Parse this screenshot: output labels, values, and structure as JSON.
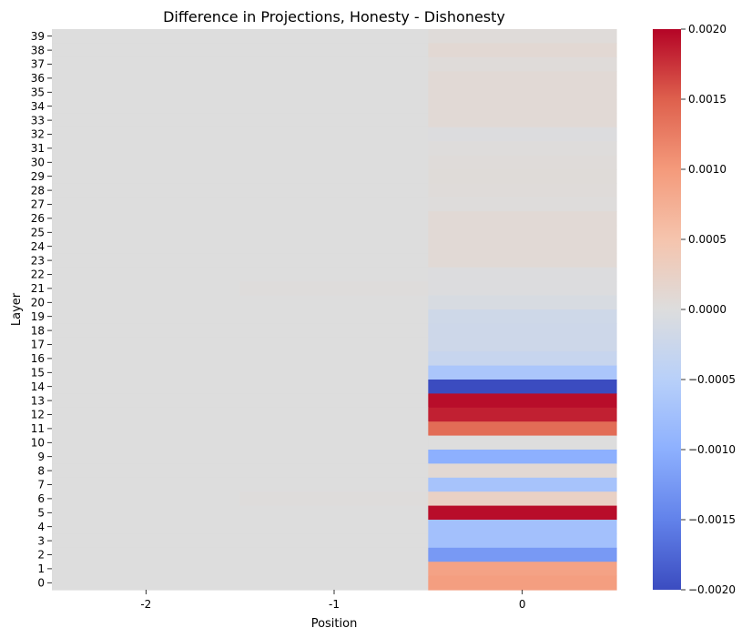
{
  "chart_data": {
    "type": "heatmap",
    "title": "Difference in Projections, Honesty - Dishonesty",
    "xlabel": "Position",
    "ylabel": "Layer",
    "x_categories": [
      "-2",
      "-1",
      "0"
    ],
    "y_categories": [
      "39",
      "38",
      "37",
      "36",
      "35",
      "34",
      "33",
      "32",
      "31",
      "30",
      "29",
      "28",
      "27",
      "26",
      "25",
      "24",
      "23",
      "22",
      "21",
      "20",
      "19",
      "18",
      "17",
      "16",
      "15",
      "14",
      "13",
      "12",
      "11",
      "10",
      "9",
      "8",
      "7",
      "6",
      "5",
      "4",
      "3",
      "2",
      "1",
      "0"
    ],
    "colormap": "coolwarm",
    "vmin": -0.002,
    "vmax": 0.002,
    "colorbar_ticks": [
      "0.0020",
      "0.0015",
      "0.0010",
      "0.0005",
      "0.0000",
      "−0.0005",
      "−0.0010",
      "−0.0015",
      "−0.0020"
    ],
    "colorbar_tick_values": [
      0.002,
      0.0015,
      0.001,
      0.0005,
      0,
      -0.0005,
      -0.001,
      -0.0015,
      -0.002
    ],
    "values": [
      [
        0.0,
        0.0,
        4e-05
      ],
      [
        0.0,
        0.0,
        0.0001
      ],
      [
        0.0,
        0.0,
        4e-05
      ],
      [
        0.0,
        0.0,
        8e-05
      ],
      [
        0.0,
        0.0,
        8e-05
      ],
      [
        0.0,
        0.0,
        8e-05
      ],
      [
        0.0,
        0.0,
        8e-05
      ],
      [
        0.0,
        0.0,
        -2e-05
      ],
      [
        0.0,
        0.0,
        2e-05
      ],
      [
        0.0,
        0.0,
        4e-05
      ],
      [
        0.0,
        0.0,
        5e-05
      ],
      [
        0.0,
        0.0,
        4e-05
      ],
      [
        0.0,
        0.0,
        2e-05
      ],
      [
        0.0,
        0.0,
        8e-05
      ],
      [
        0.0,
        0.0,
        8e-05
      ],
      [
        0.0,
        0.0,
        8e-05
      ],
      [
        0.0,
        0.0,
        8e-05
      ],
      [
        0.0,
        0.0,
        -2e-05
      ],
      [
        0.0,
        2e-05,
        -2e-05
      ],
      [
        0.0,
        0.0,
        -8e-05
      ],
      [
        0.0,
        0.0,
        -0.0002
      ],
      [
        0.0,
        0.0,
        -0.00022
      ],
      [
        0.0,
        0.0,
        -0.00022
      ],
      [
        0.0,
        0.0,
        -0.0003
      ],
      [
        0.0,
        0.0,
        -0.00065
      ],
      [
        0.0,
        0.0,
        -0.002
      ],
      [
        0.0,
        0.0,
        0.00195
      ],
      [
        0.0,
        0.0,
        0.00185
      ],
      [
        0.0,
        0.0,
        0.0014
      ],
      [
        0.0,
        0.0,
        0.0
      ],
      [
        0.0,
        0.0,
        -0.001
      ],
      [
        0.0,
        0.0,
        0.0001
      ],
      [
        0.0,
        0.0,
        -0.0007
      ],
      [
        0.0,
        2e-05,
        0.00025
      ],
      [
        0.0,
        0.0,
        0.00195
      ],
      [
        0.0,
        0.0,
        -0.00075
      ],
      [
        0.0,
        0.0,
        -0.00075
      ],
      [
        0.0,
        0.0,
        -0.00125
      ],
      [
        0.0,
        0.0,
        0.0009
      ],
      [
        0.0,
        0.0,
        0.00095
      ]
    ]
  }
}
